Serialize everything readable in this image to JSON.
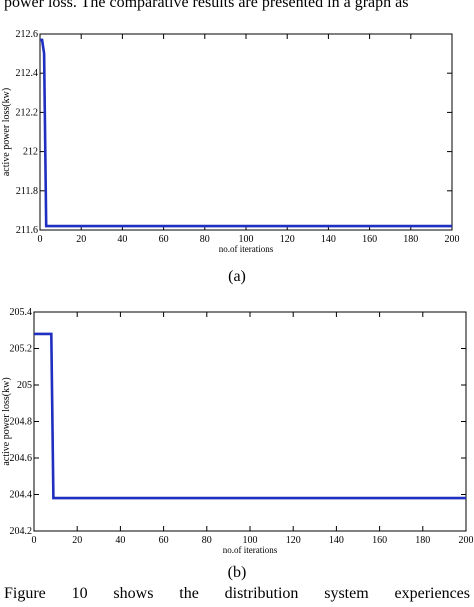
{
  "page": {
    "top_text": "power loss. The comparative results are presented in a graph as",
    "caption_a": "(a)",
    "caption_b": "(b)",
    "bottom_text": "Figure 10 shows the distribution system experiences"
  },
  "chart_data": [
    {
      "type": "line",
      "title": "",
      "xlabel": "no.of iterations",
      "ylabel": "active power loss(kw)",
      "xlim": [
        0,
        200
      ],
      "ylim": [
        211.6,
        212.6
      ],
      "xticks": [
        0,
        20,
        40,
        60,
        80,
        100,
        120,
        140,
        160,
        180,
        200
      ],
      "yticks": [
        211.6,
        211.8,
        212,
        212.2,
        212.4,
        212.6
      ],
      "ytick_labels": [
        "211.6",
        "211.8",
        "212",
        "212.2",
        "212.4",
        "212.6"
      ],
      "grid": false,
      "color": "#1f2fbf",
      "series": [
        {
          "x": [
            0,
            1,
            2,
            3,
            200
          ],
          "y": [
            212.57,
            212.57,
            212.5,
            211.62,
            211.62
          ]
        }
      ]
    },
    {
      "type": "line",
      "title": "",
      "xlabel": "no.of iterations",
      "ylabel": "active power loss(kw)",
      "xlim": [
        0,
        200
      ],
      "ylim": [
        204.2,
        205.4
      ],
      "xticks": [
        0,
        20,
        40,
        60,
        80,
        100,
        120,
        140,
        160,
        180,
        200
      ],
      "yticks": [
        204.2,
        204.4,
        204.6,
        204.8,
        205,
        205.2,
        205.4
      ],
      "ytick_labels": [
        "204.2",
        "204.4",
        "204.6",
        "204.8",
        "205",
        "205.2",
        "205.4"
      ],
      "grid": false,
      "color": "#1f2fbf",
      "series": [
        {
          "x": [
            0,
            8,
            9,
            200
          ],
          "y": [
            205.28,
            205.28,
            204.38,
            204.38
          ]
        }
      ]
    }
  ]
}
